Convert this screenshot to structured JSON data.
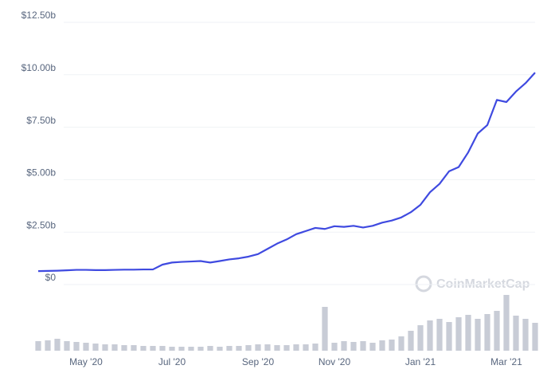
{
  "chart_data": [
    {
      "type": "line",
      "color": "#3f4ae0",
      "grid": true,
      "categories": [
        null,
        null,
        null,
        null,
        null,
        "May '20",
        null,
        null,
        null,
        null,
        null,
        null,
        null,
        null,
        "Jul '20",
        null,
        null,
        null,
        null,
        null,
        null,
        null,
        null,
        "Sep '20",
        null,
        null,
        null,
        null,
        null,
        null,
        null,
        "Nov '20",
        null,
        null,
        null,
        null,
        null,
        null,
        null,
        null,
        "Jan '21",
        null,
        null,
        null,
        null,
        null,
        null,
        null,
        null,
        "Mar '21",
        null,
        null,
        null
      ],
      "values": [
        0.64,
        0.65,
        0.66,
        0.68,
        0.7,
        0.7,
        0.69,
        0.69,
        0.7,
        0.71,
        0.71,
        0.72,
        0.72,
        0.95,
        1.05,
        1.08,
        1.1,
        1.12,
        1.05,
        1.12,
        1.2,
        1.25,
        1.33,
        1.45,
        1.7,
        1.95,
        2.15,
        2.4,
        2.55,
        2.7,
        2.65,
        2.78,
        2.75,
        2.8,
        2.72,
        2.8,
        2.95,
        3.05,
        3.2,
        3.45,
        3.8,
        4.4,
        4.8,
        5.4,
        5.6,
        6.3,
        7.2,
        7.6,
        8.8,
        8.7,
        9.2,
        9.6,
        10.1
      ],
      "ylim": [
        0,
        12.5
      ],
      "yticks": [
        {
          "value": 0,
          "label": "$0"
        },
        {
          "value": 2.5,
          "label": "$2.50b"
        },
        {
          "value": 5,
          "label": "$5.00b"
        },
        {
          "value": 7.5,
          "label": "$7.50b"
        },
        {
          "value": 10,
          "label": "$10.00b"
        },
        {
          "value": 12.5,
          "label": "$12.50b"
        }
      ],
      "watermark": "CoinMarketCap"
    },
    {
      "type": "bar",
      "color": "#c8ccd6",
      "values": [
        12,
        13,
        15,
        12,
        11,
        10,
        9,
        8,
        8,
        7,
        7,
        6,
        6,
        6,
        5,
        5,
        5,
        5,
        6,
        5,
        6,
        6,
        7,
        8,
        8,
        7,
        7,
        8,
        8,
        9,
        55,
        10,
        12,
        11,
        12,
        10,
        13,
        14,
        18,
        25,
        32,
        38,
        40,
        36,
        42,
        45,
        40,
        46,
        50,
        70,
        44,
        40,
        35
      ],
      "ylim": [
        0,
        80
      ]
    }
  ]
}
